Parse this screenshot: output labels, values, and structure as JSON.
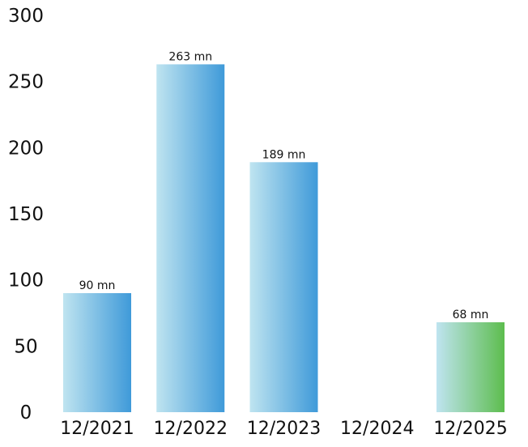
{
  "chart_data": {
    "type": "bar",
    "categories": [
      "12/2021",
      "12/2022",
      "12/2023",
      "12/2024",
      "12/2025"
    ],
    "values": [
      90,
      263,
      189,
      null,
      68
    ],
    "data_labels": [
      "90 mn",
      "263 mn",
      "189 mn",
      "",
      "68 mn"
    ],
    "ylim": [
      0,
      300
    ],
    "yticks": [
      0,
      50,
      100,
      150,
      200,
      250,
      300
    ],
    "grid": false,
    "legend": "none",
    "colors": {
      "gradient_light": "#bfe4f0",
      "gradient_blue": "#3f9ad9",
      "gradient_green": "#5dbd4e"
    },
    "bar_color_kind": [
      "blue",
      "blue",
      "blue",
      "blue",
      "green"
    ]
  }
}
